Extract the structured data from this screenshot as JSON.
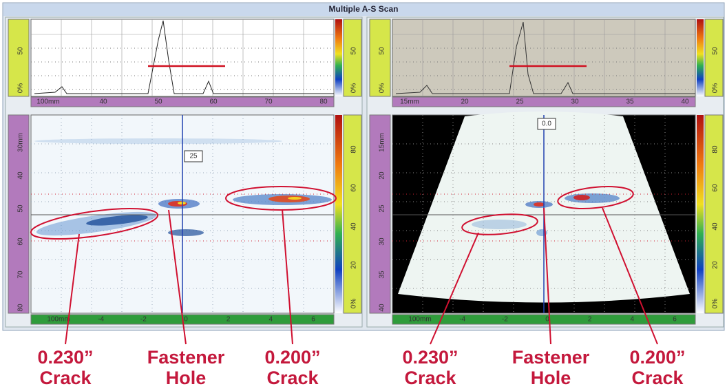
{
  "window": {
    "title": "Multiple A-S Scan"
  },
  "panels": [
    {
      "ascan": {
        "amp_labels": [
          "50",
          "0%"
        ],
        "axis_labels": [
          "100mm",
          "40",
          "50",
          "60",
          "70",
          "80"
        ]
      },
      "sscan": {
        "depth_labels": [
          "30mm",
          "40",
          "50",
          "60",
          "70",
          "80"
        ],
        "axis_labels": [
          "100mm",
          "-4",
          "-2",
          "0",
          "2",
          "4",
          "6"
        ],
        "scale_labels": [
          "80",
          "60",
          "40",
          "20",
          "0%"
        ],
        "cursor_label": "25"
      }
    },
    {
      "ascan": {
        "amp_labels": [
          "50",
          "0%"
        ],
        "axis_labels": [
          "15mm",
          "20",
          "25",
          "30",
          "35",
          "40"
        ]
      },
      "sscan": {
        "depth_labels": [
          "15mm",
          "20",
          "25",
          "30",
          "35",
          "40"
        ],
        "axis_labels": [
          "100mm",
          "-4",
          "-2",
          "0",
          "2",
          "4",
          "6"
        ],
        "scale_labels": [
          "80",
          "60",
          "40",
          "20",
          "0%"
        ],
        "cursor_label": "0.0"
      }
    }
  ],
  "annotations": [
    {
      "value": "0.230”",
      "label": "Crack"
    },
    {
      "value": "Fastener",
      "label": "Hole"
    },
    {
      "value": "0.200”",
      "label": "Crack"
    },
    {
      "value": "0.230”",
      "label": "Crack"
    },
    {
      "value": "Fastener",
      "label": "Hole"
    },
    {
      "value": "0.200”",
      "label": "Crack"
    }
  ]
}
